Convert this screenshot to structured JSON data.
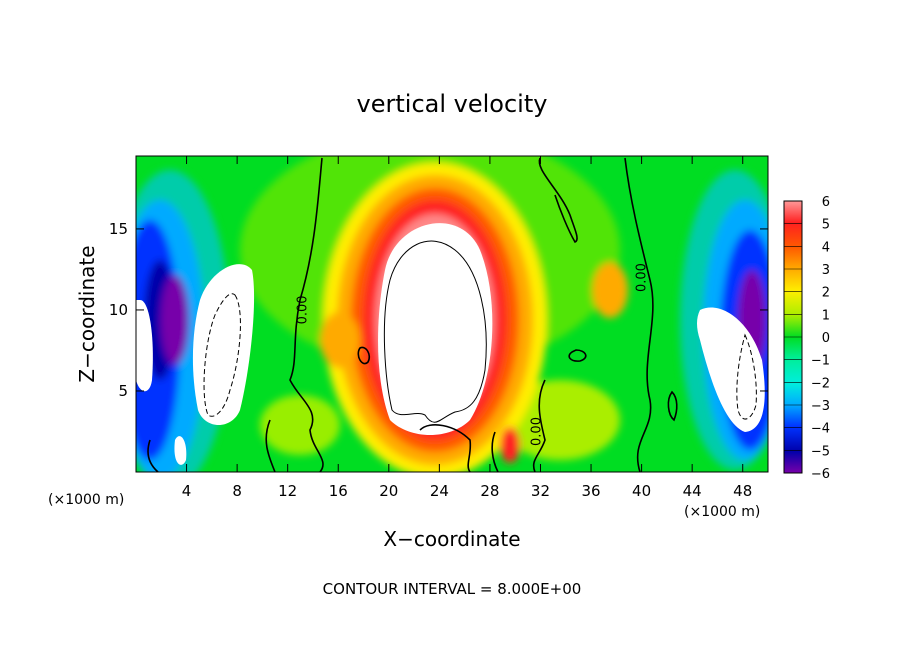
{
  "chart_data": {
    "type": "heatmap",
    "title": "vertical velocity",
    "xlabel": "X−coordinate",
    "ylabel": "Z−coordinate",
    "x_unit_left": "(×1000 m)",
    "x_unit_right": "(×1000 m)",
    "footer": "CONTOUR INTERVAL = 8.000E+00",
    "xlim": [
      0,
      50
    ],
    "ylim": [
      0,
      19.5
    ],
    "x_ticks": [
      4,
      8,
      12,
      16,
      20,
      24,
      28,
      32,
      36,
      40,
      44,
      48
    ],
    "x_tick_labels": [
      "4",
      "8",
      "12",
      "16",
      "20",
      "24",
      "28",
      "32",
      "36",
      "40",
      "44",
      "48"
    ],
    "y_ticks": [
      5,
      10,
      15
    ],
    "y_tick_labels": [
      "5",
      "10",
      "15"
    ],
    "colorbar": {
      "min": -6,
      "max": 6,
      "ticks": [
        6,
        5,
        4,
        3,
        2,
        1,
        0,
        -1,
        -2,
        -3,
        -4,
        -5,
        -6
      ],
      "tick_labels": [
        "6",
        "5",
        "4",
        "3",
        "2",
        "1",
        "0",
        "−1",
        "−2",
        "−3",
        "−4",
        "−5",
        "−6"
      ]
    },
    "contour_labels": [
      {
        "text": "0.00",
        "x": 13.5,
        "z": 10.0
      },
      {
        "text": "0.00",
        "x": 32.0,
        "z": 2.5
      },
      {
        "text": "0.00",
        "x": 40.3,
        "z": 12.0
      }
    ],
    "colors": {
      "background": "#00dd22",
      "positive_max": "#ff9090",
      "negative_max": "#7700aa",
      "saturated": "#ffffff"
    }
  }
}
